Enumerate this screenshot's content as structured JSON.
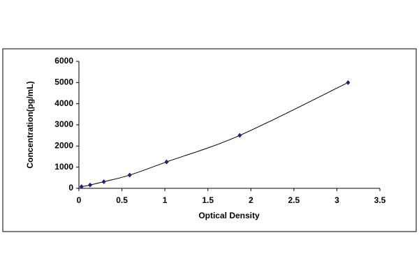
{
  "chart_data": {
    "type": "scatter",
    "x_label": "Optical Density",
    "y_label": "Concentration(pg/mL)",
    "x": [
      0.03,
      0.13,
      0.29,
      0.59,
      1.02,
      1.87,
      3.13
    ],
    "series": [
      {
        "color": "#1f1f7a",
        "values": [
          78,
          156,
          312,
          625,
          1250,
          2500,
          5000
        ]
      }
    ],
    "connect": true,
    "xlim": [
      0,
      3.5
    ],
    "xticks": [
      0,
      0.5,
      1,
      1.5,
      2,
      2.5,
      3,
      3.5
    ],
    "ylim": [
      0,
      6000
    ],
    "yticks": [
      0,
      1000,
      2000,
      3000,
      4000,
      5000,
      6000
    ],
    "grid": false
  }
}
